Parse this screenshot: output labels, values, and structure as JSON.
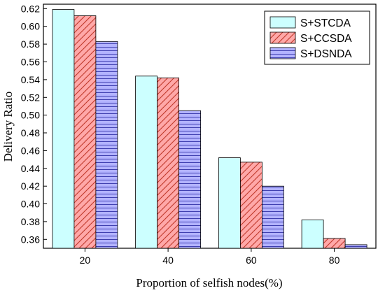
{
  "chart_data": {
    "type": "bar",
    "xlabel": "Proportion of selfish nodes(%)",
    "ylabel": "Delivery Ratio",
    "categories": [
      "20",
      "40",
      "60",
      "80"
    ],
    "ylim": [
      0.35,
      0.625
    ],
    "yticks": [
      "0.36",
      "0.38",
      "0.40",
      "0.42",
      "0.44",
      "0.46",
      "0.48",
      "0.50",
      "0.52",
      "0.54",
      "0.56",
      "0.58",
      "0.60",
      "0.62"
    ],
    "series": [
      {
        "name": "S+STCDA",
        "values": [
          0.619,
          0.544,
          0.452,
          0.382
        ],
        "color": "#ccffff",
        "pattern": "solid"
      },
      {
        "name": "S+CCSDA",
        "values": [
          0.612,
          0.542,
          0.447,
          0.361
        ],
        "color": "#ff9999",
        "pattern": "diagonal-hatch"
      },
      {
        "name": "S+DSNDA",
        "values": [
          0.583,
          0.505,
          0.42,
          0.354
        ],
        "color": "#9999ff",
        "pattern": "horizontal-hatch"
      }
    ],
    "legend_position": "top-right",
    "grid": false
  }
}
